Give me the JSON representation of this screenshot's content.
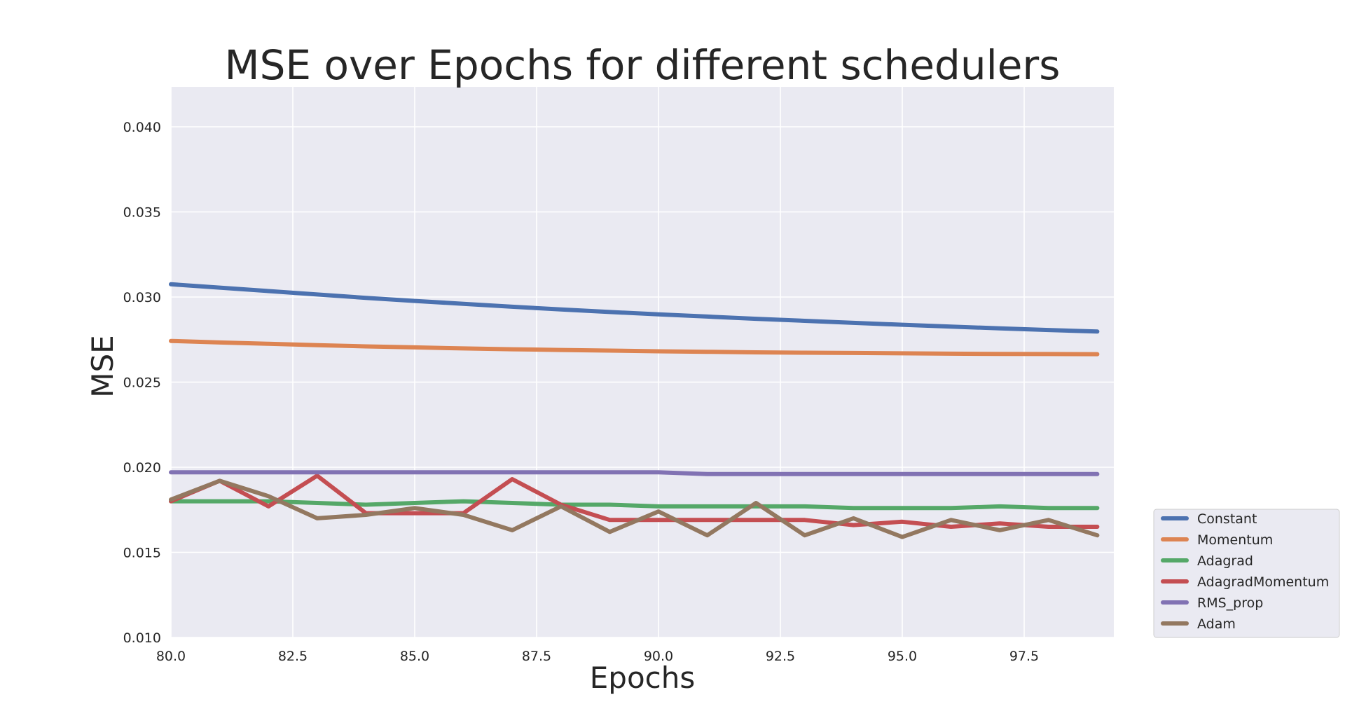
{
  "chart_data": {
    "type": "line",
    "title": "MSE over Epochs for different schedulers",
    "xlabel": "Epochs",
    "ylabel": "MSE",
    "xlim": [
      80,
      99
    ],
    "ylim": [
      0.01,
      0.042
    ],
    "grid": true,
    "legend_position": "lower-right outside",
    "x_ticks": [
      "80.0",
      "82.5",
      "85.0",
      "87.5",
      "90.0",
      "92.5",
      "95.0",
      "97.5"
    ],
    "x_tick_values": [
      80,
      82.5,
      85,
      87.5,
      90,
      92.5,
      95,
      97.5
    ],
    "y_ticks": [
      "0.010",
      "0.015",
      "0.020",
      "0.025",
      "0.030",
      "0.035",
      "0.040"
    ],
    "y_tick_values": [
      0.01,
      0.015,
      0.02,
      0.025,
      0.03,
      0.035,
      0.04
    ],
    "x": [
      80,
      81,
      82,
      83,
      84,
      85,
      86,
      87,
      88,
      89,
      90,
      91,
      92,
      93,
      94,
      95,
      96,
      97,
      98,
      99
    ],
    "series": [
      {
        "name": "Constant",
        "color": "#4c72b0",
        "values": [
          0.03075,
          0.03055,
          0.03035,
          0.03015,
          0.02995,
          0.02977,
          0.0296,
          0.02943,
          0.02927,
          0.02912,
          0.02898,
          0.02885,
          0.02872,
          0.0286,
          0.02848,
          0.02837,
          0.02826,
          0.02816,
          0.02806,
          0.02797
        ]
      },
      {
        "name": "Momentum",
        "color": "#dd8452",
        "values": [
          0.02742,
          0.02733,
          0.02725,
          0.02717,
          0.0271,
          0.02704,
          0.02698,
          0.02693,
          0.02689,
          0.02685,
          0.02681,
          0.02678,
          0.02675,
          0.02673,
          0.02671,
          0.02669,
          0.02667,
          0.02666,
          0.02665,
          0.02664
        ]
      },
      {
        "name": "Adagrad",
        "color": "#55a868",
        "values": [
          0.018,
          0.018,
          0.018,
          0.0179,
          0.0178,
          0.0179,
          0.018,
          0.0179,
          0.0178,
          0.0178,
          0.0177,
          0.0177,
          0.0177,
          0.0177,
          0.0176,
          0.0176,
          0.0176,
          0.0177,
          0.0176,
          0.0176
        ]
      },
      {
        "name": "AdagradMomentum",
        "color": "#c44e52",
        "values": [
          0.018,
          0.0192,
          0.0177,
          0.0195,
          0.0173,
          0.0173,
          0.0173,
          0.0193,
          0.0178,
          0.0169,
          0.0169,
          0.0169,
          0.0169,
          0.0169,
          0.0166,
          0.0168,
          0.0165,
          0.0167,
          0.0165,
          0.0165
        ]
      },
      {
        "name": "RMS_prop",
        "color": "#8172b3",
        "values": [
          0.0197,
          0.0197,
          0.0197,
          0.0197,
          0.0197,
          0.0197,
          0.0197,
          0.0197,
          0.0197,
          0.0197,
          0.0197,
          0.0196,
          0.0196,
          0.0196,
          0.0196,
          0.0196,
          0.0196,
          0.0196,
          0.0196,
          0.0196
        ]
      },
      {
        "name": "Adam",
        "color": "#937860",
        "values": [
          0.0181,
          0.0192,
          0.0183,
          0.017,
          0.0172,
          0.0176,
          0.0172,
          0.0163,
          0.0177,
          0.0162,
          0.0174,
          0.016,
          0.0179,
          0.016,
          0.017,
          0.0159,
          0.0169,
          0.0163,
          0.0169,
          0.016
        ]
      }
    ]
  }
}
